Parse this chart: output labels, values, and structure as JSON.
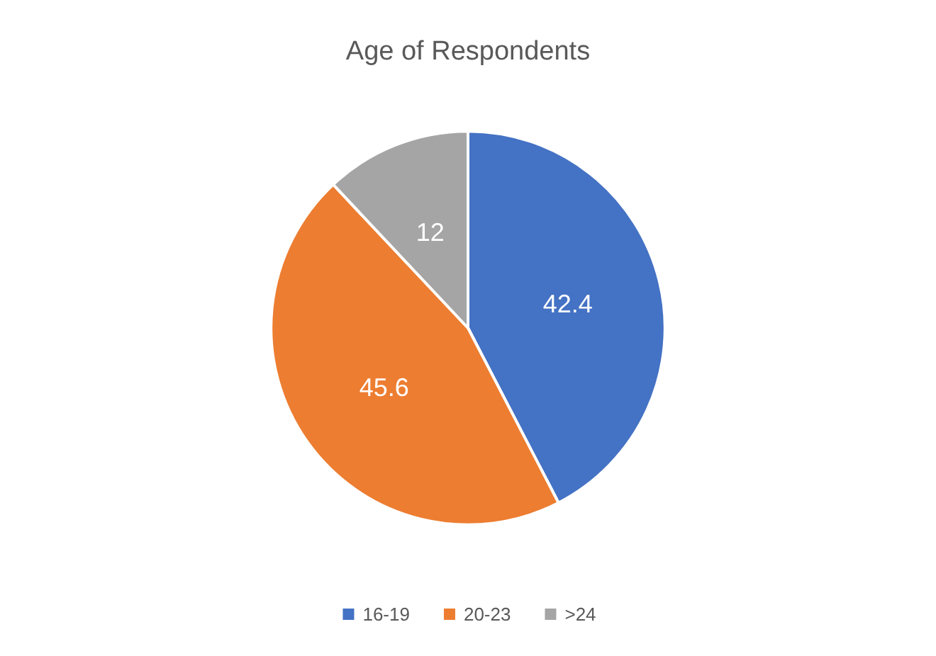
{
  "chart_data": {
    "type": "pie",
    "title": "Age of Respondents",
    "categories": [
      "16-19",
      "20-23",
      ">24"
    ],
    "values": [
      42.4,
      45.6,
      12
    ],
    "colors": [
      "#4472c4",
      "#ed7d31",
      "#a5a5a5"
    ],
    "data_labels": true,
    "legend": "bottom"
  }
}
